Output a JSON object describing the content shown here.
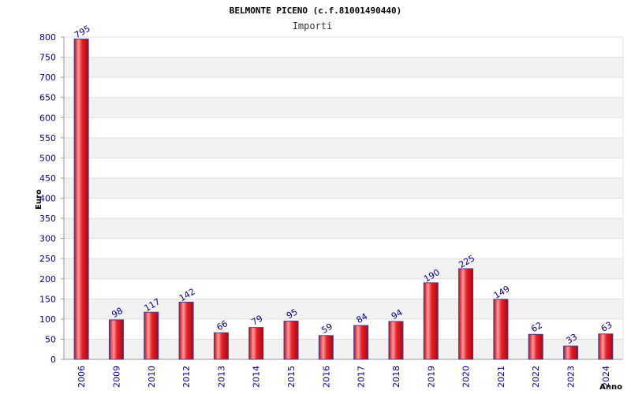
{
  "header": {
    "title": "BELMONTE PICENO (c.f.81001490440)",
    "subtitle": "Importi"
  },
  "chart_data": {
    "type": "bar",
    "title": "BELMONTE PICENO (c.f.81001490440)",
    "subtitle": "Importi",
    "xlabel": "Anno",
    "ylabel": "Euro",
    "categories": [
      "2006",
      "2009",
      "2010",
      "2012",
      "2013",
      "2014",
      "2015",
      "2016",
      "2017",
      "2018",
      "2019",
      "2020",
      "2021",
      "2022",
      "2023",
      "2024"
    ],
    "values": [
      795,
      98,
      117,
      142,
      66,
      79,
      95,
      59,
      84,
      94,
      190,
      225,
      149,
      62,
      33,
      63
    ],
    "ylim": [
      0,
      800
    ],
    "yticks": [
      0,
      50,
      100,
      150,
      200,
      250,
      300,
      350,
      400,
      450,
      500,
      550,
      600,
      650,
      700,
      750,
      800
    ],
    "grid": "horizontal alternating bands",
    "legend": "none",
    "colors": {
      "bar_light": "#ff9a9a",
      "bar_main": "#e8202a",
      "bar_dark": "#b0101a",
      "bar_edge": "#4a3c8c",
      "band": "#f2f2f2",
      "gridline": "#dddddd",
      "tick_text": "#00008b",
      "axis": "#999999"
    }
  }
}
